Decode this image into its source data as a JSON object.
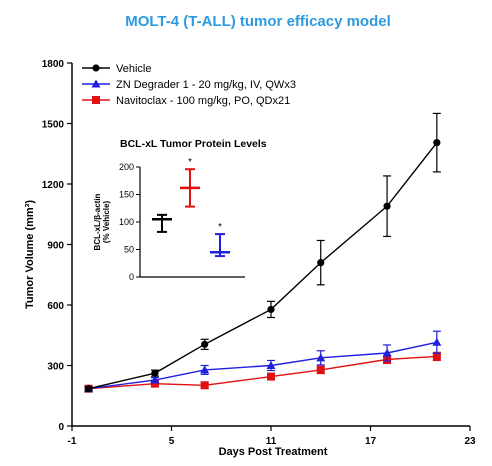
{
  "chart_data": [
    {
      "type": "line",
      "title": "MOLT-4 (T-ALL) tumor efficacy model",
      "xlabel": "Days Post Treatment",
      "ylabel": "Tumor Volume (mm³)",
      "xlim": [
        -1,
        23
      ],
      "ylim": [
        0,
        1800
      ],
      "xticks": [
        -1,
        5,
        11,
        17,
        23
      ],
      "yticks": [
        0,
        300,
        600,
        900,
        1200,
        1500,
        1800
      ],
      "legend_position": "top-left",
      "series": [
        {
          "name": "Vehicle",
          "color": "#000000",
          "marker": "circle",
          "x": [
            0,
            4,
            7,
            11,
            14,
            18,
            21
          ],
          "y": [
            185,
            262,
            405,
            578,
            810,
            1090,
            1405
          ],
          "err": [
            10,
            15,
            25,
            40,
            110,
            150,
            145
          ]
        },
        {
          "name": "ZN Degrader 1 - 20 mg/kg, IV, QWx3",
          "color": "#1f1fe0",
          "marker": "triangle",
          "x": [
            0,
            4,
            7,
            11,
            14,
            18,
            21
          ],
          "y": [
            185,
            228,
            278,
            300,
            338,
            362,
            415
          ],
          "err": [
            8,
            12,
            22,
            25,
            35,
            40,
            55
          ]
        },
        {
          "name": "Navitoclax - 100 mg/kg, PO, QDx21",
          "color": "#e01010",
          "marker": "square",
          "x": [
            0,
            4,
            7,
            11,
            14,
            18,
            21
          ],
          "y": [
            185,
            210,
            202,
            245,
            278,
            330,
            345
          ],
          "err": [
            8,
            10,
            12,
            15,
            18,
            20,
            20
          ]
        }
      ]
    },
    {
      "type": "scatter",
      "title": "BCL-xL Tumor Protein Levels",
      "ylabel": "BCL-xL/β-actin\n(% Vehicle)",
      "ylim": [
        0,
        200
      ],
      "yticks": [
        0,
        50,
        100,
        150,
        200
      ],
      "groups": [
        {
          "name": "Vehicle",
          "color": "#000000",
          "mean": 105,
          "err_low": 82,
          "err_high": 113,
          "significance": ""
        },
        {
          "name": "Navitoclax",
          "color": "#e01010",
          "mean": 162,
          "err_low": 128,
          "err_high": 196,
          "significance": "*"
        },
        {
          "name": "ZN Degrader 1",
          "color": "#1f1fe0",
          "mean": 45,
          "err_low": 38,
          "err_high": 78,
          "significance": "*"
        }
      ]
    }
  ]
}
